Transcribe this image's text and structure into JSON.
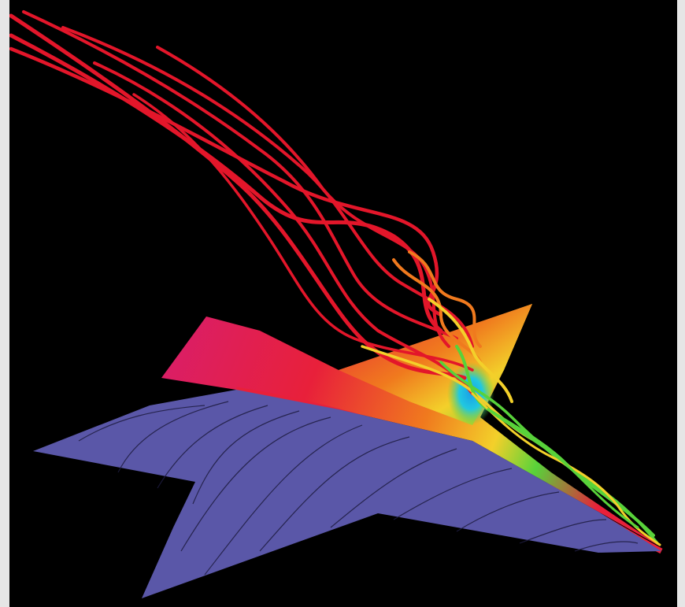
{
  "image": {
    "subject": "cfd-flow-visualization",
    "background_color": "#000000",
    "frame_color": "#e6e6e6",
    "colors": {
      "lower_surface": "#5a57a8",
      "upper_surface_red": "#e8203a",
      "upper_surface_magenta": "#d81e6e",
      "vortex_core_cyan": "#21c8e0",
      "streamline_red": "#e3162a",
      "streamline_orange": "#f07a1e",
      "streamline_yellow": "#f3d02a",
      "streamline_green": "#58d23a",
      "surface_line": "#1e1c40"
    }
  }
}
